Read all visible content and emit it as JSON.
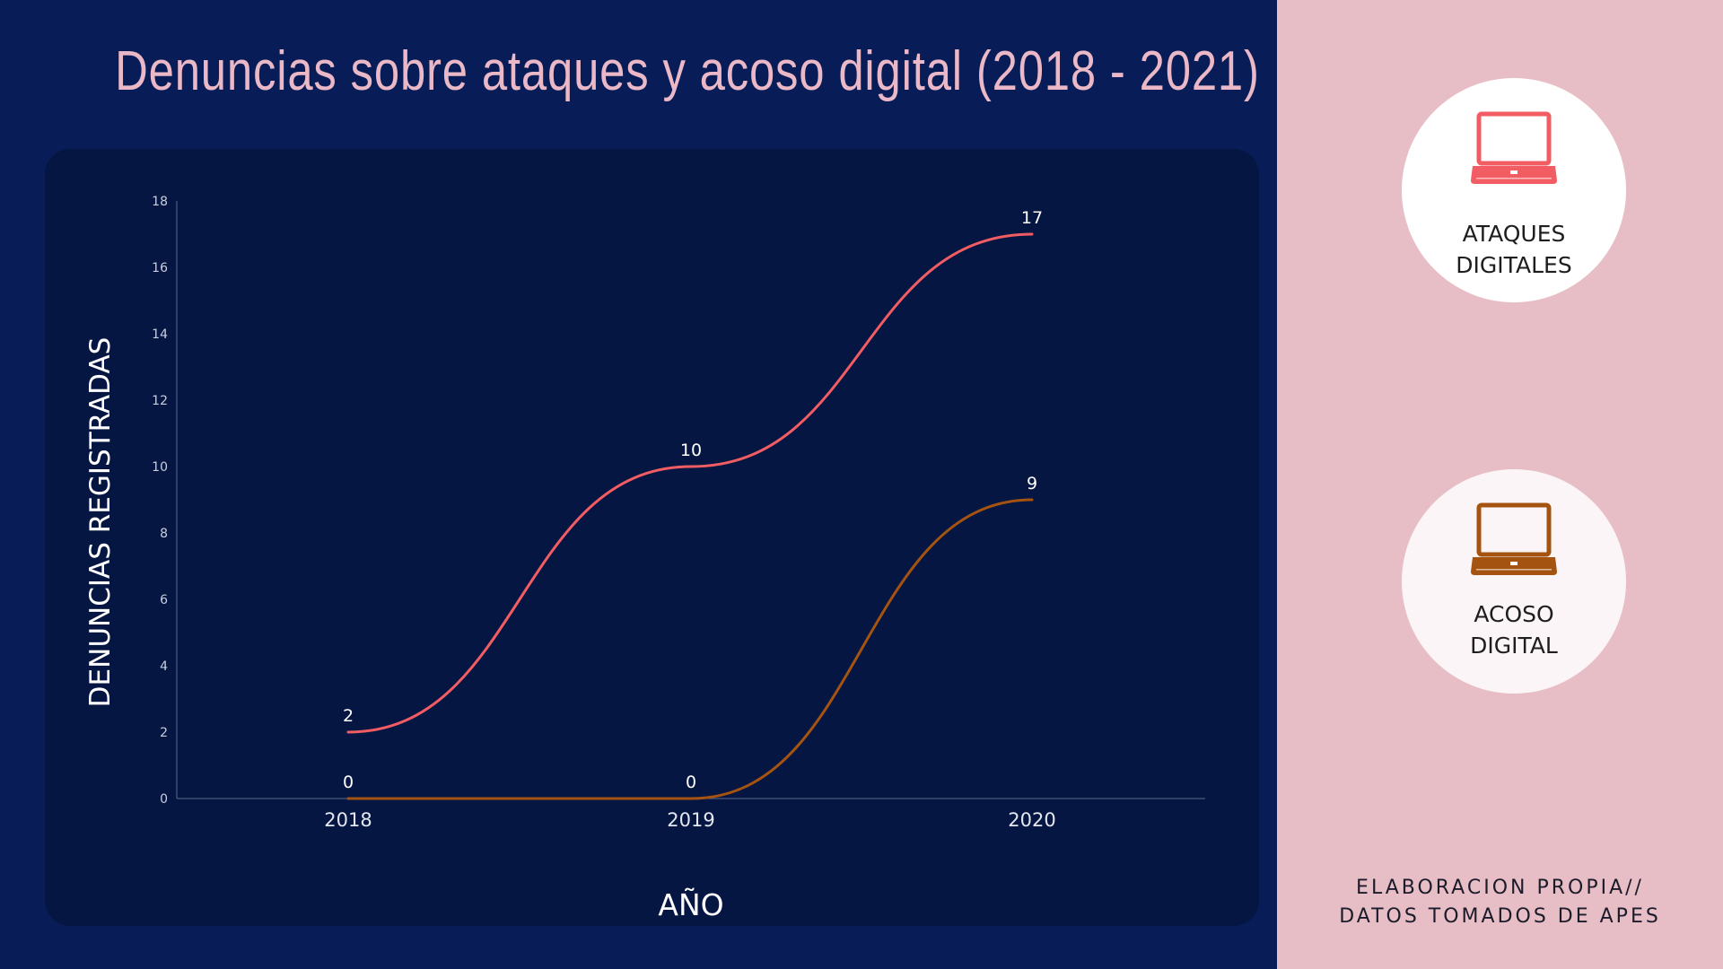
{
  "title": "Denuncias sobre ataques y acoso digital (2018 - 2021)",
  "legend": {
    "attacks_label": "ATAQUES\nDIGITALES",
    "harassment_label": "ACOSO\nDIGITAL",
    "attacks_icon": "laptop-icon",
    "harassment_icon": "laptop-icon"
  },
  "source": {
    "line1": "ELABORACION PROPIA//",
    "line2": "DATOS TOMADOS DE APES"
  },
  "colors": {
    "background": "#081d57",
    "card": "#051642",
    "side_panel": "#e8bec6",
    "title": "#eab8c6",
    "attacks": "#f25c63",
    "harassment": "#a55310"
  },
  "chart_data": {
    "type": "line",
    "title": "Denuncias sobre ataques y acoso digital (2018 - 2021)",
    "xlabel": "AÑO",
    "ylabel": "DENUNCIAS REGISTRADAS",
    "categories": [
      "2018",
      "2019",
      "2020"
    ],
    "ylim": [
      0,
      18
    ],
    "yticks": [
      0,
      2,
      4,
      6,
      8,
      10,
      12,
      14,
      16,
      18
    ],
    "grid": false,
    "smooth": true,
    "legend_position": "right panel",
    "series": [
      {
        "name": "ATAQUES DIGITALES",
        "color": "#f25c63",
        "values": [
          2,
          10,
          17
        ],
        "labels": [
          "2",
          "10",
          "17"
        ]
      },
      {
        "name": "ACOSO DIGITAL",
        "color": "#a55310",
        "values": [
          0,
          0,
          9
        ],
        "labels": [
          "0",
          "0",
          "9"
        ]
      }
    ]
  }
}
